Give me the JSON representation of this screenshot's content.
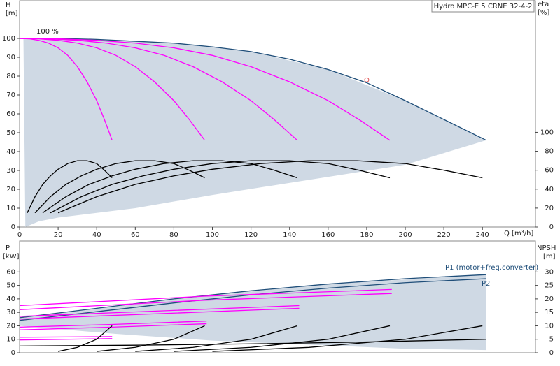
{
  "chart_data": [
    {
      "type": "line",
      "title": "Hydro MPC-E 5 CRNE 32-4-2",
      "annotation": "100 %",
      "ylabel": "H",
      "yunit": "[m]",
      "y2label": "eta",
      "y2unit": "[%]",
      "xlabel": "Q [m³/h]",
      "xlim": [
        0,
        267.5
      ],
      "xticks": [
        0,
        20,
        40,
        60,
        80,
        100,
        120,
        140,
        160,
        180,
        200,
        220,
        240
      ],
      "ylim": [
        0,
        120
      ],
      "yticks": [
        0,
        10,
        20,
        30,
        40,
        50,
        60,
        70,
        80,
        90,
        100
      ],
      "y2lim": [
        0,
        239
      ],
      "y2ticks": [
        0,
        20,
        40,
        60,
        80,
        100
      ],
      "areas": [
        {
          "color": "#cfd9e4",
          "x": [
            2,
            40,
            80,
            120,
            160,
            200,
            242,
            200,
            150,
            100,
            60,
            20,
            10,
            3
          ],
          "values": [
            100,
            99.5,
            97.5,
            93,
            83.5,
            67,
            46,
            33,
            25,
            17,
            10,
            5,
            3,
            0
          ]
        }
      ],
      "series": [
        {
          "color": "#1f4e79",
          "x": [
            0,
            20,
            40,
            60,
            80,
            100,
            120,
            140,
            160,
            180,
            200,
            220,
            242
          ],
          "values": [
            100,
            100,
            99.5,
            98.5,
            97.5,
            95.5,
            93,
            89,
            83.5,
            76.5,
            67,
            57,
            46
          ]
        },
        {
          "color": "#ff00ff",
          "x": [
            0,
            5,
            10,
            15,
            20,
            25,
            30,
            35,
            40,
            44,
            48
          ],
          "values": [
            100,
            99.8,
            99,
            97.5,
            95,
            91,
            85,
            77,
            67,
            57,
            46
          ]
        },
        {
          "color": "#ff00ff",
          "x": [
            0,
            10,
            20,
            30,
            40,
            50,
            60,
            70,
            80,
            88,
            96
          ],
          "values": [
            100,
            99.8,
            99,
            97.5,
            95,
            91,
            85,
            77,
            67,
            57,
            46
          ]
        },
        {
          "color": "#ff00ff",
          "x": [
            0,
            15,
            30,
            45,
            60,
            75,
            90,
            105,
            120,
            132,
            144
          ],
          "values": [
            100,
            99.8,
            99,
            97.5,
            95,
            91,
            85,
            77,
            67,
            57,
            46
          ]
        },
        {
          "color": "#ff00ff",
          "x": [
            0,
            20,
            40,
            60,
            80,
            100,
            120,
            140,
            160,
            176,
            192
          ],
          "values": [
            100,
            99.8,
            99,
            97.5,
            95,
            91,
            85,
            77,
            67,
            57,
            46
          ]
        },
        {
          "color": "#000000",
          "axis": "y2",
          "x": [
            4,
            8,
            12,
            16,
            20,
            25,
            30,
            35,
            40,
            44,
            48
          ],
          "values": [
            15,
            32,
            45,
            54,
            61,
            67,
            70,
            70,
            67,
            60,
            52
          ]
        },
        {
          "color": "#000000",
          "axis": "y2",
          "x": [
            8,
            16,
            24,
            32,
            40,
            50,
            60,
            70,
            80,
            88,
            96
          ],
          "values": [
            15,
            32,
            45,
            54,
            61,
            67,
            70,
            70,
            67,
            60,
            52
          ]
        },
        {
          "color": "#000000",
          "axis": "y2",
          "x": [
            12,
            24,
            36,
            48,
            60,
            75,
            90,
            105,
            120,
            132,
            144
          ],
          "values": [
            15,
            32,
            45,
            54,
            61,
            67,
            70,
            70,
            67,
            60,
            52
          ]
        },
        {
          "color": "#000000",
          "axis": "y2",
          "x": [
            16,
            32,
            48,
            64,
            80,
            100,
            120,
            140,
            160,
            176,
            192
          ],
          "values": [
            15,
            32,
            45,
            54,
            61,
            67,
            70,
            70,
            67,
            60,
            52
          ]
        },
        {
          "color": "#000000",
          "axis": "y2",
          "x": [
            20,
            40,
            60,
            80,
            100,
            125,
            150,
            175,
            200,
            220,
            240
          ],
          "values": [
            15,
            32,
            45,
            54,
            61,
            67,
            70,
            70,
            67,
            60,
            52
          ]
        }
      ],
      "points": [
        {
          "x": 180,
          "y": 78,
          "color": "#e05050"
        }
      ]
    },
    {
      "type": "line",
      "ylabel": "P",
      "yunit": "[kW]",
      "y2label": "NPSH",
      "y2unit": "[m]",
      "xlim": [
        0,
        267.5
      ],
      "ylim": [
        0,
        83
      ],
      "yticks": [
        0,
        10,
        20,
        30,
        40,
        50,
        60
      ],
      "y2lim": [
        0,
        41.5
      ],
      "y2ticks": [
        0,
        5,
        10,
        15,
        20,
        25,
        30
      ],
      "areas": [
        {
          "color": "#cfd9e4",
          "x": [
            0,
            80,
            160,
            242,
            242,
            200,
            150,
            100,
            50,
            0
          ],
          "values": [
            26,
            40,
            51,
            58,
            2,
            3,
            6,
            9,
            14,
            20
          ]
        }
      ],
      "series": [
        {
          "name": "P1 (motor+freq.converter)",
          "color": "#1f4e79",
          "x": [
            0,
            40,
            80,
            120,
            160,
            200,
            242
          ],
          "values": [
            26,
            33,
            40,
            46,
            51,
            55,
            58
          ]
        },
        {
          "name": "P2",
          "color": "#1f4e79",
          "x": [
            0,
            40,
            80,
            120,
            160,
            200,
            242
          ],
          "values": [
            24,
            30.5,
            37,
            43,
            48,
            52,
            55
          ]
        },
        {
          "color": "#ff00ff",
          "x": [
            0,
            48
          ],
          "values": [
            11.5,
            12
          ]
        },
        {
          "color": "#ff00ff",
          "x": [
            0,
            48
          ],
          "values": [
            9.5,
            10.5
          ]
        },
        {
          "color": "#ff00ff",
          "x": [
            0,
            48,
            97
          ],
          "values": [
            19,
            21,
            23.5
          ]
        },
        {
          "color": "#ff00ff",
          "x": [
            0,
            48,
            97
          ],
          "values": [
            17,
            19,
            21.5
          ]
        },
        {
          "color": "#ff00ff",
          "x": [
            0,
            72,
            145
          ],
          "values": [
            27,
            31,
            35
          ]
        },
        {
          "color": "#ff00ff",
          "x": [
            0,
            72,
            145
          ],
          "values": [
            25,
            29,
            33
          ]
        },
        {
          "color": "#ff00ff",
          "x": [
            0,
            96,
            193
          ],
          "values": [
            35,
            42,
            47
          ]
        },
        {
          "color": "#ff00ff",
          "x": [
            0,
            96,
            193
          ],
          "values": [
            32,
            39,
            44
          ]
        },
        {
          "color": "#000000",
          "axis": "y2",
          "x": [
            0,
            60,
            120,
            180,
            242
          ],
          "values": [
            2.5,
            2.8,
            3.3,
            4,
            5
          ]
        },
        {
          "color": "#000000",
          "axis": "y2",
          "x": [
            20,
            30,
            40,
            48
          ],
          "values": [
            0.5,
            2,
            5,
            10
          ]
        },
        {
          "color": "#000000",
          "axis": "y2",
          "x": [
            40,
            60,
            80,
            96
          ],
          "values": [
            0.5,
            2,
            5,
            10
          ]
        },
        {
          "color": "#000000",
          "axis": "y2",
          "x": [
            60,
            90,
            120,
            144
          ],
          "values": [
            0.5,
            2,
            5,
            10
          ]
        },
        {
          "color": "#000000",
          "axis": "y2",
          "x": [
            80,
            120,
            160,
            192
          ],
          "values": [
            0.5,
            2,
            5,
            10
          ]
        },
        {
          "color": "#000000",
          "axis": "y2",
          "x": [
            100,
            150,
            200,
            240
          ],
          "values": [
            0.5,
            2,
            5,
            10
          ]
        }
      ]
    }
  ]
}
